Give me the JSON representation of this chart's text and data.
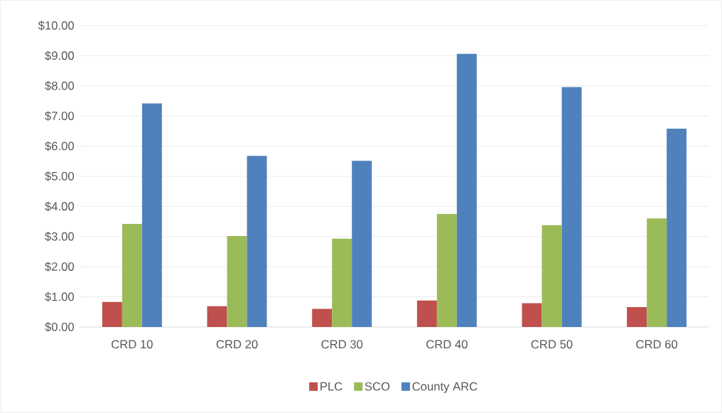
{
  "chart_data": {
    "type": "bar",
    "categories": [
      "CRD 10",
      "CRD 20",
      "CRD 30",
      "CRD 40",
      "CRD 50",
      "CRD 60"
    ],
    "series": [
      {
        "name": "PLC",
        "color": "#c0504d",
        "values": [
          0.83,
          0.69,
          0.6,
          0.88,
          0.79,
          0.66
        ]
      },
      {
        "name": "SCO",
        "color": "#9bbb59",
        "values": [
          3.42,
          3.02,
          2.93,
          3.75,
          3.38,
          3.6
        ]
      },
      {
        "name": "County ARC",
        "color": "#4f81bd",
        "values": [
          7.42,
          5.68,
          5.51,
          9.06,
          7.96,
          6.58
        ]
      }
    ],
    "ylim": [
      0,
      10
    ],
    "yticks": [
      {
        "value": 0,
        "label": "$0.00"
      },
      {
        "value": 1,
        "label": "$1.00"
      },
      {
        "value": 2,
        "label": "$2.00"
      },
      {
        "value": 3,
        "label": "$3.00"
      },
      {
        "value": 4,
        "label": "$4.00"
      },
      {
        "value": 5,
        "label": "$5.00"
      },
      {
        "value": 6,
        "label": "$6.00"
      },
      {
        "value": 7,
        "label": "$7.00"
      },
      {
        "value": 8,
        "label": "$8.00"
      },
      {
        "value": 9,
        "label": "$9.00"
      },
      {
        "value": 10,
        "label": "$10.00"
      }
    ],
    "grid": "y",
    "legend": "bottom"
  }
}
